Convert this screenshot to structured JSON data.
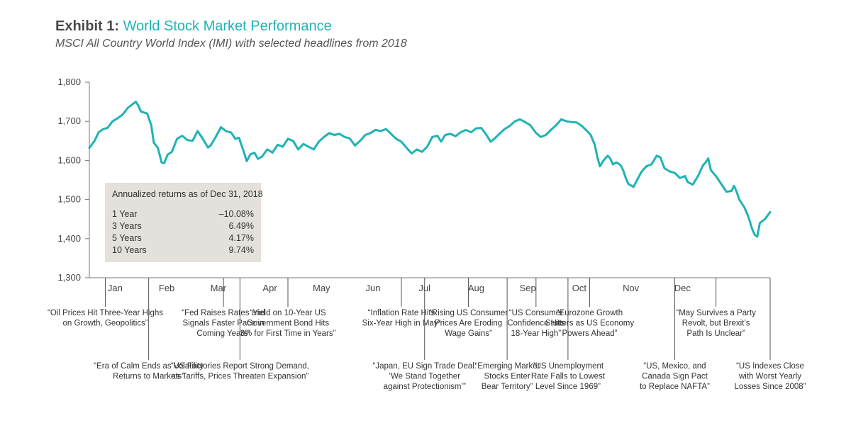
{
  "header": {
    "title_lead": "Exhibit 1:",
    "title_main": "World Stock Market Performance",
    "subtitle": "MSCI All Country World Index (IMI) with selected headlines from 2018"
  },
  "returns_table": {
    "title": "Annualized returns as of Dec 31, 2018",
    "rows": [
      {
        "label": "1 Year",
        "value": "–10.08%"
      },
      {
        "label": "3 Years",
        "value": "6.49%"
      },
      {
        "label": "5 Years",
        "value": "4.17%"
      },
      {
        "label": "10 Years",
        "value": "9.74%"
      }
    ]
  },
  "chart_data": {
    "type": "line",
    "title": "World Stock Market Performance",
    "subtitle": "MSCI All Country World Index (IMI) with selected headlines from 2018",
    "ylim": [
      1300,
      1800
    ],
    "yticks": [
      "1,300",
      "1,400",
      "1,500",
      "1,600",
      "1,700",
      "1,800"
    ],
    "months": [
      "Jan",
      "Feb",
      "Mar",
      "Apr",
      "May",
      "Jun",
      "Jul",
      "Aug",
      "Sep",
      "Oct",
      "Nov",
      "Dec"
    ],
    "color": "#1fb3b5",
    "series": [
      {
        "name": "",
        "points": [
          [
            0.0,
            1632
          ],
          [
            0.1,
            1650
          ],
          [
            0.18,
            1672
          ],
          [
            0.27,
            1680
          ],
          [
            0.35,
            1683
          ],
          [
            0.45,
            1700
          ],
          [
            0.55,
            1708
          ],
          [
            0.65,
            1718
          ],
          [
            0.75,
            1735
          ],
          [
            0.85,
            1745
          ],
          [
            0.9,
            1750
          ],
          [
            0.95,
            1740
          ],
          [
            1.0,
            1725
          ],
          [
            1.12,
            1720
          ],
          [
            1.2,
            1690
          ],
          [
            1.25,
            1645
          ],
          [
            1.33,
            1632
          ],
          [
            1.4,
            1595
          ],
          [
            1.45,
            1593
          ],
          [
            1.52,
            1615
          ],
          [
            1.6,
            1622
          ],
          [
            1.7,
            1655
          ],
          [
            1.8,
            1663
          ],
          [
            1.9,
            1652
          ],
          [
            2.0,
            1650
          ],
          [
            2.1,
            1675
          ],
          [
            2.2,
            1655
          ],
          [
            2.3,
            1633
          ],
          [
            2.35,
            1638
          ],
          [
            2.45,
            1660
          ],
          [
            2.55,
            1685
          ],
          [
            2.65,
            1675
          ],
          [
            2.75,
            1671
          ],
          [
            2.83,
            1655
          ],
          [
            2.9,
            1658
          ],
          [
            3.0,
            1620
          ],
          [
            3.05,
            1598
          ],
          [
            3.12,
            1615
          ],
          [
            3.2,
            1620
          ],
          [
            3.27,
            1604
          ],
          [
            3.35,
            1610
          ],
          [
            3.45,
            1628
          ],
          [
            3.55,
            1620
          ],
          [
            3.65,
            1640
          ],
          [
            3.75,
            1635
          ],
          [
            3.85,
            1655
          ],
          [
            3.95,
            1650
          ],
          [
            4.05,
            1628
          ],
          [
            4.15,
            1642
          ],
          [
            4.25,
            1635
          ],
          [
            4.35,
            1628
          ],
          [
            4.45,
            1648
          ],
          [
            4.55,
            1660
          ],
          [
            4.65,
            1670
          ],
          [
            4.75,
            1665
          ],
          [
            4.85,
            1668
          ],
          [
            4.95,
            1660
          ],
          [
            5.05,
            1656
          ],
          [
            5.15,
            1638
          ],
          [
            5.25,
            1650
          ],
          [
            5.35,
            1665
          ],
          [
            5.45,
            1670
          ],
          [
            5.55,
            1678
          ],
          [
            5.65,
            1675
          ],
          [
            5.75,
            1680
          ],
          [
            5.85,
            1668
          ],
          [
            5.95,
            1655
          ],
          [
            6.05,
            1648
          ],
          [
            6.15,
            1632
          ],
          [
            6.25,
            1618
          ],
          [
            6.35,
            1628
          ],
          [
            6.45,
            1622
          ],
          [
            6.55,
            1635
          ],
          [
            6.65,
            1660
          ],
          [
            6.75,
            1663
          ],
          [
            6.82,
            1648
          ],
          [
            6.9,
            1665
          ],
          [
            7.0,
            1668
          ],
          [
            7.1,
            1662
          ],
          [
            7.2,
            1672
          ],
          [
            7.3,
            1678
          ],
          [
            7.4,
            1672
          ],
          [
            7.5,
            1682
          ],
          [
            7.6,
            1683
          ],
          [
            7.7,
            1665
          ],
          [
            7.78,
            1648
          ],
          [
            7.85,
            1655
          ],
          [
            7.95,
            1668
          ],
          [
            8.05,
            1680
          ],
          [
            8.15,
            1688
          ],
          [
            8.25,
            1700
          ],
          [
            8.35,
            1705
          ],
          [
            8.45,
            1698
          ],
          [
            8.55,
            1690
          ],
          [
            8.65,
            1672
          ],
          [
            8.75,
            1660
          ],
          [
            8.85,
            1665
          ],
          [
            8.95,
            1678
          ],
          [
            9.05,
            1690
          ],
          [
            9.15,
            1705
          ],
          [
            9.25,
            1700
          ],
          [
            9.35,
            1698
          ],
          [
            9.45,
            1697
          ],
          [
            9.55,
            1688
          ],
          [
            9.65,
            1675
          ],
          [
            9.72,
            1665
          ],
          [
            9.8,
            1640
          ],
          [
            9.85,
            1608
          ],
          [
            9.9,
            1585
          ],
          [
            9.97,
            1600
          ],
          [
            10.05,
            1612
          ],
          [
            10.1,
            1605
          ],
          [
            10.15,
            1590
          ],
          [
            10.22,
            1595
          ],
          [
            10.3,
            1588
          ],
          [
            10.35,
            1575
          ],
          [
            10.4,
            1555
          ],
          [
            10.45,
            1540
          ],
          [
            10.55,
            1532
          ],
          [
            10.6,
            1545
          ],
          [
            10.7,
            1570
          ],
          [
            10.8,
            1585
          ],
          [
            10.9,
            1590
          ],
          [
            11.0,
            1612
          ],
          [
            11.07,
            1608
          ],
          [
            11.15,
            1580
          ],
          [
            11.25,
            1572
          ],
          [
            11.35,
            1568
          ],
          [
            11.45,
            1555
          ],
          [
            11.55,
            1560
          ],
          [
            11.6,
            1545
          ],
          [
            11.7,
            1538
          ],
          [
            11.8,
            1560
          ],
          [
            11.9,
            1588
          ],
          [
            11.95,
            1595
          ],
          [
            12.0,
            1605
          ],
          [
            12.05,
            1575
          ],
          [
            12.15,
            1560
          ],
          [
            12.25,
            1540
          ],
          [
            12.35,
            1520
          ],
          [
            12.45,
            1522
          ],
          [
            12.5,
            1535
          ],
          [
            12.55,
            1520
          ],
          [
            12.6,
            1500
          ],
          [
            12.7,
            1480
          ],
          [
            12.78,
            1455
          ],
          [
            12.85,
            1425
          ],
          [
            12.9,
            1410
          ],
          [
            12.95,
            1405
          ],
          [
            13.0,
            1440
          ],
          [
            13.1,
            1450
          ],
          [
            13.2,
            1468
          ]
        ]
      }
    ]
  },
  "annotations": [
    {
      "lines": [
        "“Oil Prices Hit Three-Year Highs",
        "on Growth, Geopolitics”"
      ],
      "pos": 0.31,
      "level": 1
    },
    {
      "lines": [
        "“Era of Calm Ends as Volatility",
        "Returns to Markets”"
      ],
      "pos": 1.15,
      "level": 2
    },
    {
      "lines": [
        "“Fed Raises Rates and",
        "Signals Faster Pace in",
        "Coming Years”"
      ],
      "pos": 2.6,
      "level": 1
    },
    {
      "lines": [
        "“US Factories Report Strong Demand,",
        "as Tariffs, Prices Threaten Expansion”"
      ],
      "pos": 2.92,
      "level": 2
    },
    {
      "lines": [
        "“Yield on 10-Year US",
        "Government Bond Hits",
        "3% for First Time in Years”"
      ],
      "pos": 3.85,
      "level": 1
    },
    {
      "lines": [
        "“Inflation Rate Hits",
        "Six-Year High in May”"
      ],
      "pos": 6.05,
      "level": 1
    },
    {
      "lines": [
        "“Japan, EU Sign Trade Deal:",
        "‘We Stand Together",
        "against Protectionism’”"
      ],
      "pos": 6.5,
      "level": 2
    },
    {
      "lines": [
        "“Rising US Consumer",
        "Prices Are Eroding",
        "Wage Gains”"
      ],
      "pos": 7.35,
      "level": 1
    },
    {
      "lines": [
        "“Emerging Market",
        "Stocks Enter",
        "Bear Territory”"
      ],
      "pos": 8.1,
      "level": 2
    },
    {
      "lines": [
        "“US Consumer",
        "Confidence Hits",
        "18-Year High”"
      ],
      "pos": 8.66,
      "level": 1
    },
    {
      "lines": [
        "“US Unemployment",
        "Rate Falls to Lowest",
        "Level Since 1969”"
      ],
      "pos": 9.28,
      "level": 2
    },
    {
      "lines": [
        "“Eurozone Growth",
        "Stutters as US Economy",
        "Powers Ahead”"
      ],
      "pos": 9.7,
      "level": 1
    },
    {
      "lines": [
        "“US, Mexico, and",
        "Canada Sign Pact",
        "to Replace NAFTA”"
      ],
      "pos": 11.35,
      "level": 2
    },
    {
      "lines": [
        "“May Survives a Party",
        "Revolt, but Brexit’s",
        "Path Is Unclear”"
      ],
      "pos": 12.15,
      "level": 1
    },
    {
      "lines": [
        "“US Indexes Close",
        "with Worst Yearly",
        "Losses Since 2008”"
      ],
      "pos": 13.2,
      "level": 2
    }
  ]
}
